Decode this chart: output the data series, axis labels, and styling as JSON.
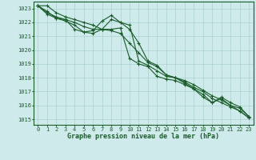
{
  "xlabel": "Graphe pression niveau de la mer (hPa)",
  "background_color": "#ceeaea",
  "grid_color": "#aacfcf",
  "line_color": "#1a5c2a",
  "ylim": [
    1014.6,
    1023.5
  ],
  "xlim": [
    -0.5,
    23.5
  ],
  "yticks": [
    1015,
    1016,
    1017,
    1018,
    1019,
    1020,
    1021,
    1022,
    1023
  ],
  "xticks": [
    0,
    1,
    2,
    3,
    4,
    5,
    6,
    7,
    8,
    9,
    10,
    11,
    12,
    13,
    14,
    15,
    16,
    17,
    18,
    19,
    20,
    21,
    22,
    23
  ],
  "series": [
    [
      1023.2,
      1023.2,
      1022.7,
      1022.4,
      1022.2,
      1022.0,
      1021.8,
      1021.5,
      1022.2,
      1022.0,
      1021.5,
      1020.5,
      1019.2,
      1018.9,
      1018.2,
      1018.0,
      1017.8,
      1017.5,
      1017.1,
      1016.7,
      1016.4,
      1016.0,
      1015.6,
      1015.1
    ],
    [
      1023.2,
      1022.7,
      1022.4,
      1022.2,
      1022.0,
      1021.7,
      1021.5,
      1021.5,
      1021.4,
      1021.2,
      1020.5,
      1019.8,
      1019.1,
      1018.8,
      1018.2,
      1018.0,
      1017.7,
      1017.3,
      1017.0,
      1016.5,
      1016.2,
      1015.9,
      1015.6,
      1015.1
    ],
    [
      1023.2,
      1022.8,
      1022.3,
      1022.2,
      1021.5,
      1021.3,
      1021.4,
      1022.1,
      1022.5,
      1022.0,
      1021.8,
      1019.2,
      1018.9,
      1018.5,
      1018.1,
      1018.0,
      1017.6,
      1017.2,
      1016.8,
      1016.2,
      1016.5,
      1016.0,
      1015.8,
      1015.2
    ],
    [
      1023.2,
      1022.6,
      1022.3,
      1022.1,
      1021.8,
      1021.3,
      1021.2,
      1021.5,
      1021.5,
      1021.6,
      1019.4,
      1019.0,
      1018.8,
      1018.1,
      1017.9,
      1017.8,
      1017.5,
      1017.2,
      1016.6,
      1016.2,
      1016.6,
      1016.2,
      1015.9,
      1015.2
    ]
  ]
}
